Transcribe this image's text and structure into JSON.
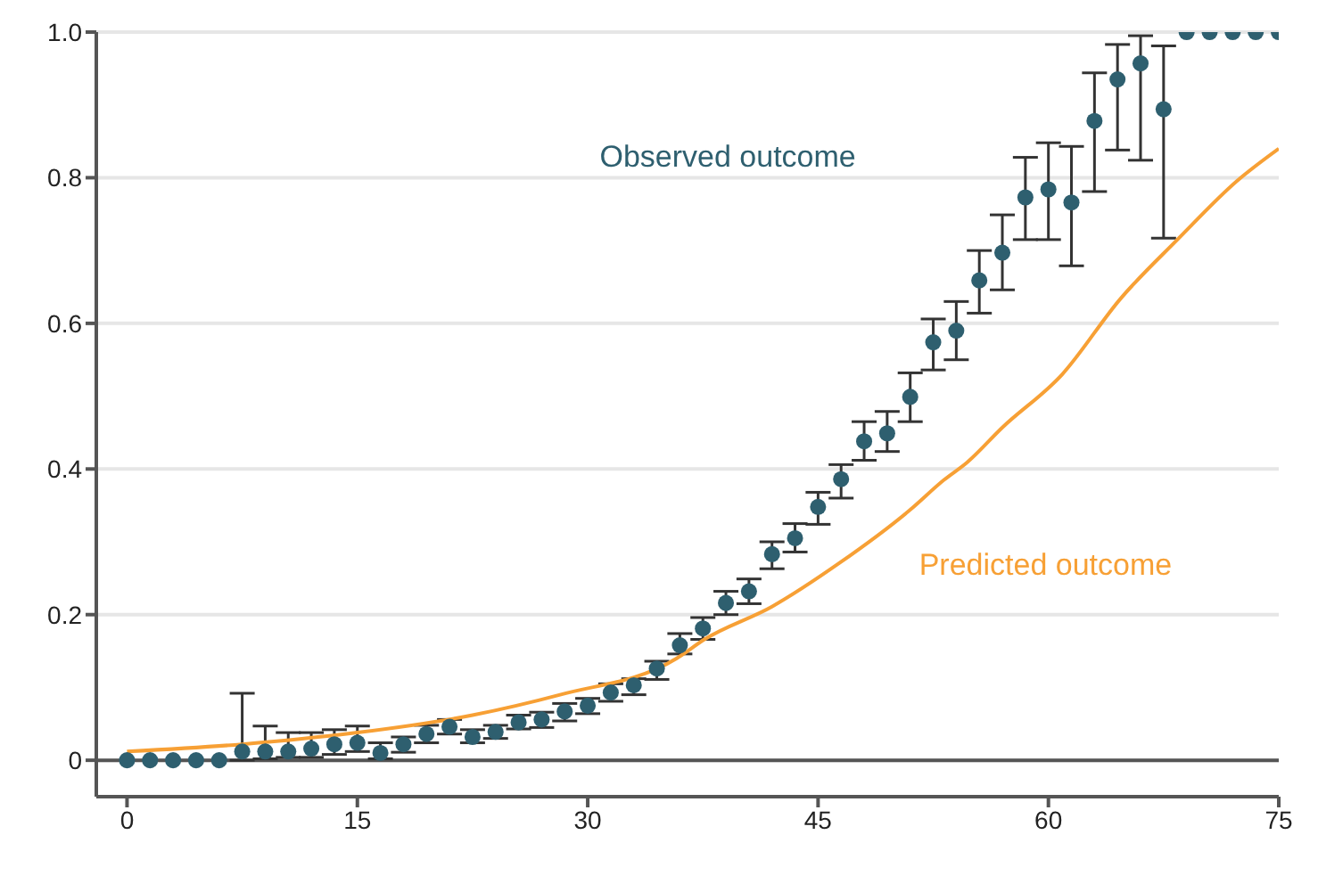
{
  "chart_data": {
    "type": "scatter",
    "xlim": [
      -2,
      75
    ],
    "xticks": [
      0,
      15,
      30,
      45,
      60,
      75
    ],
    "ylim": [
      -0.05,
      1
    ],
    "yticks": [
      0,
      0.2,
      0.4,
      0.6,
      0.8,
      {
        "value": 1,
        "label": "1.0"
      }
    ],
    "grid": "y",
    "legend": false,
    "ref_lines": [
      {
        "axis": "y",
        "value": 0,
        "color": "#555555"
      }
    ],
    "series": [
      {
        "name": "Observed outcome",
        "color": "#2e5f6f",
        "marker": "circle",
        "x": [
          0,
          1.5,
          3,
          4.5,
          6,
          7.5,
          9,
          10.5,
          12,
          13.5,
          15,
          16.5,
          18,
          19.5,
          21,
          22.5,
          24,
          25.5,
          27,
          28.5,
          30,
          31.5,
          33,
          34.5,
          36,
          37.5,
          39,
          40.5,
          42,
          43.5,
          45,
          46.5,
          48,
          49.5,
          51,
          52.5,
          54,
          55.5,
          57,
          58.5,
          60,
          61.5,
          63,
          64.5,
          66,
          67.5,
          69,
          70.5,
          72,
          73.5,
          75
        ],
        "values": [
          0,
          0,
          0,
          0,
          0,
          0.012,
          0.012,
          0.012,
          0.016,
          0.022,
          0.024,
          0.01,
          0.022,
          0.036,
          0.046,
          0.032,
          0.039,
          0.052,
          0.056,
          0.067,
          0.075,
          0.093,
          0.103,
          0.126,
          0.158,
          0.181,
          0.216,
          0.232,
          0.283,
          0.305,
          0.348,
          0.386,
          0.438,
          0.449,
          0.499,
          0.574,
          0.59,
          0.659,
          0.697,
          0.773,
          0.784,
          0.766,
          0.878,
          0.935,
          0.957,
          0.894,
          1,
          1,
          1,
          1,
          1
        ],
        "errors": [
          null,
          null,
          null,
          null,
          null,
          [
            0,
            0.092
          ],
          [
            0.002,
            0.047
          ],
          [
            0.004,
            0.038
          ],
          [
            0.004,
            0.038
          ],
          [
            0.008,
            0.042
          ],
          [
            0.012,
            0.047
          ],
          [
            0.002,
            0.024
          ],
          [
            0.011,
            0.032
          ],
          [
            0.024,
            0.048
          ],
          [
            0.036,
            0.056
          ],
          [
            0.024,
            0.042
          ],
          [
            0.03,
            0.048
          ],
          [
            0.043,
            0.062
          ],
          [
            0.045,
            0.066
          ],
          [
            0.054,
            0.078
          ],
          [
            0.064,
            0.085
          ],
          [
            0.081,
            0.105
          ],
          [
            0.09,
            0.112
          ],
          [
            0.111,
            0.136
          ],
          [
            0.146,
            0.174
          ],
          [
            0.166,
            0.196
          ],
          [
            0.2,
            0.232
          ],
          [
            0.215,
            0.249
          ],
          [
            0.263,
            0.3
          ],
          [
            0.286,
            0.325
          ],
          [
            0.324,
            0.368
          ],
          [
            0.36,
            0.406
          ],
          [
            0.412,
            0.465
          ],
          [
            0.424,
            0.479
          ],
          [
            0.465,
            0.532
          ],
          [
            0.536,
            0.606
          ],
          [
            0.55,
            0.63
          ],
          [
            0.614,
            0.7
          ],
          [
            0.646,
            0.749
          ],
          [
            0.715,
            0.828
          ],
          [
            0.715,
            0.848
          ],
          [
            0.679,
            0.843
          ],
          [
            0.781,
            0.944
          ],
          [
            0.838,
            0.983
          ],
          [
            0.824,
            0.995
          ],
          [
            0.717,
            0.981
          ],
          null,
          null,
          null,
          null,
          null
        ]
      },
      {
        "name": "Predicted outcome",
        "type": "line",
        "color": "#f7a035",
        "line_style": "solid",
        "marker": "none",
        "x": [
          0,
          7.5,
          15,
          22.5,
          28.2,
          35.8,
          37.6,
          42,
          46.4,
          51,
          53.2,
          54.7,
          57,
          60.9,
          64.7,
          68.4,
          72.3,
          75
        ],
        "values": [
          0.012,
          0.022,
          0.038,
          0.062,
          0.09,
          0.14,
          0.166,
          0.211,
          0.271,
          0.344,
          0.385,
          0.409,
          0.457,
          0.53,
          0.634,
          0.715,
          0.796,
          0.84
        ]
      }
    ]
  }
}
